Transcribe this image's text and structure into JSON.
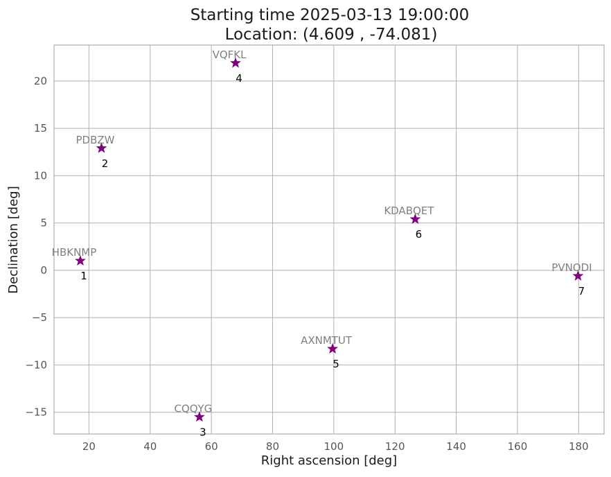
{
  "chart_data": {
    "type": "scatter",
    "title": "Starting time 2025-03-13 19:00:00",
    "subtitle": "Location: (4.609 , -74.081)",
    "xlabel": "Right ascension [deg]",
    "ylabel": "Declination [deg]",
    "xlim": [
      8.6,
      188.3
    ],
    "ylim": [
      -17.3,
      23.8
    ],
    "xticks": [
      20,
      40,
      60,
      80,
      100,
      120,
      140,
      160,
      180
    ],
    "yticks": [
      -15,
      -10,
      -5,
      0,
      5,
      10,
      15,
      20
    ],
    "grid": true,
    "marker": "star",
    "marker_color": "#800080",
    "name_label_color": "#808080",
    "index_label_color": "#000000",
    "points": [
      {
        "name": "HBKNMP",
        "index": "1",
        "x": 17.2,
        "y": 1.0
      },
      {
        "name": "PDBZW",
        "index": "2",
        "x": 24.1,
        "y": 12.9
      },
      {
        "name": "CQQYG",
        "index": "3",
        "x": 56.1,
        "y": -15.5
      },
      {
        "name": "VQFKL",
        "index": "4",
        "x": 67.9,
        "y": 21.9
      },
      {
        "name": "AXNMTUT",
        "index": "5",
        "x": 99.6,
        "y": -8.3
      },
      {
        "name": "KDABQET",
        "index": "6",
        "x": 126.6,
        "y": 5.4
      },
      {
        "name": "PVNQDI",
        "index": "7",
        "x": 179.8,
        "y": -0.6
      }
    ]
  }
}
